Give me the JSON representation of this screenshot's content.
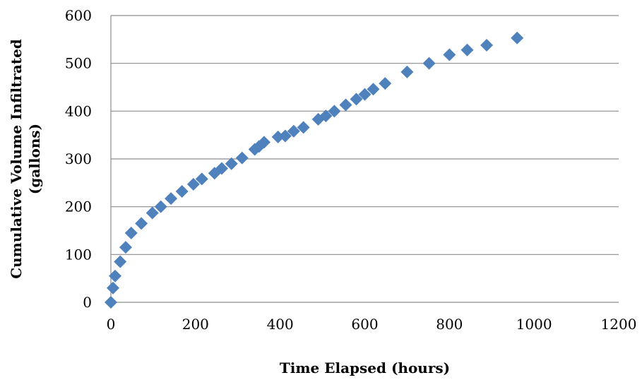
{
  "chart_data": {
    "type": "scatter",
    "xlabel": "Time Elapsed (hours)",
    "ylabel_lines": [
      "Cumulative Volume Infiltrated",
      "(gallons)"
    ],
    "xlim": [
      0,
      1200
    ],
    "ylim": [
      0,
      600
    ],
    "x_ticks": [
      0,
      200,
      400,
      600,
      800,
      1000,
      1200
    ],
    "y_ticks": [
      0,
      100,
      200,
      300,
      400,
      500,
      600
    ],
    "grid": "horizontal",
    "legend": "none",
    "marker": "diamond",
    "marker_color": "#4F81BD",
    "series": [
      {
        "points": [
          [
            0,
            0
          ],
          [
            5,
            30
          ],
          [
            10,
            55
          ],
          [
            22,
            85
          ],
          [
            35,
            115
          ],
          [
            48,
            145
          ],
          [
            72,
            165
          ],
          [
            98,
            187
          ],
          [
            118,
            200
          ],
          [
            142,
            217
          ],
          [
            168,
            232
          ],
          [
            195,
            247
          ],
          [
            215,
            258
          ],
          [
            245,
            270
          ],
          [
            262,
            280
          ],
          [
            285,
            290
          ],
          [
            310,
            302
          ],
          [
            340,
            320
          ],
          [
            350,
            326
          ],
          [
            362,
            335
          ],
          [
            395,
            346
          ],
          [
            412,
            348
          ],
          [
            432,
            358
          ],
          [
            455,
            366
          ],
          [
            490,
            383
          ],
          [
            508,
            390
          ],
          [
            528,
            400
          ],
          [
            555,
            413
          ],
          [
            580,
            425
          ],
          [
            600,
            435
          ],
          [
            620,
            446
          ],
          [
            648,
            458
          ],
          [
            700,
            482
          ],
          [
            752,
            500
          ],
          [
            800,
            518
          ],
          [
            842,
            528
          ],
          [
            888,
            538
          ],
          [
            960,
            553
          ]
        ]
      }
    ]
  }
}
